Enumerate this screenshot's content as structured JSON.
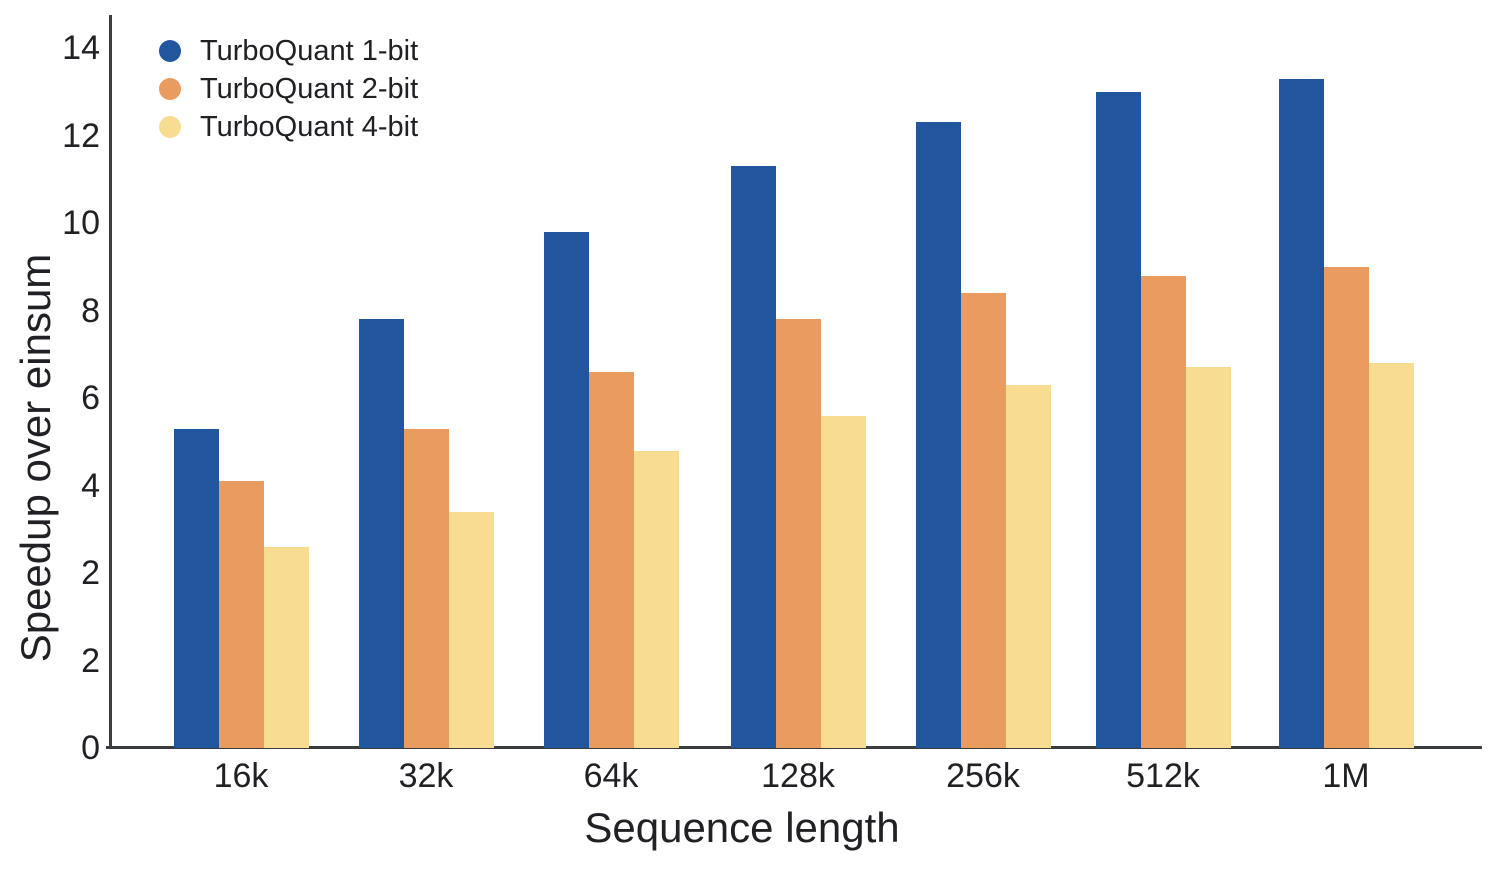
{
  "chart_data": {
    "type": "bar",
    "title": "",
    "xlabel": "Sequence length",
    "ylabel": "Speedup over einsum",
    "categories": [
      "16k",
      "32k",
      "64k",
      "128k",
      "256k",
      "512k",
      "1M"
    ],
    "series": [
      {
        "name": "TurboQuant 1-bit",
        "color": "#21569e",
        "values": [
          5.3,
          7.8,
          9.8,
          11.3,
          12.3,
          13.0,
          13.3
        ]
      },
      {
        "name": "TurboQuant 2-bit",
        "color": "#ea9c60",
        "values": [
          4.1,
          5.3,
          6.6,
          7.8,
          8.4,
          8.8,
          9.0
        ]
      },
      {
        "name": "TurboQuant 4-bit",
        "color": "#f8dc92",
        "values": [
          2.6,
          3.4,
          4.8,
          5.6,
          6.3,
          6.7,
          6.8
        ]
      }
    ],
    "y_tick_labels": [
      "14",
      "12",
      "10",
      "8",
      "6",
      "4",
      "2",
      "2",
      "0"
    ],
    "ylim": [
      0,
      14
    ],
    "grid": false,
    "legend_position": "upper-left",
    "axis_note": "source image shows the '2' tick label twice on the y-axis"
  },
  "colors": {
    "text": "#202124",
    "axis_line": "#3a3d40",
    "background": "#ffffff"
  }
}
